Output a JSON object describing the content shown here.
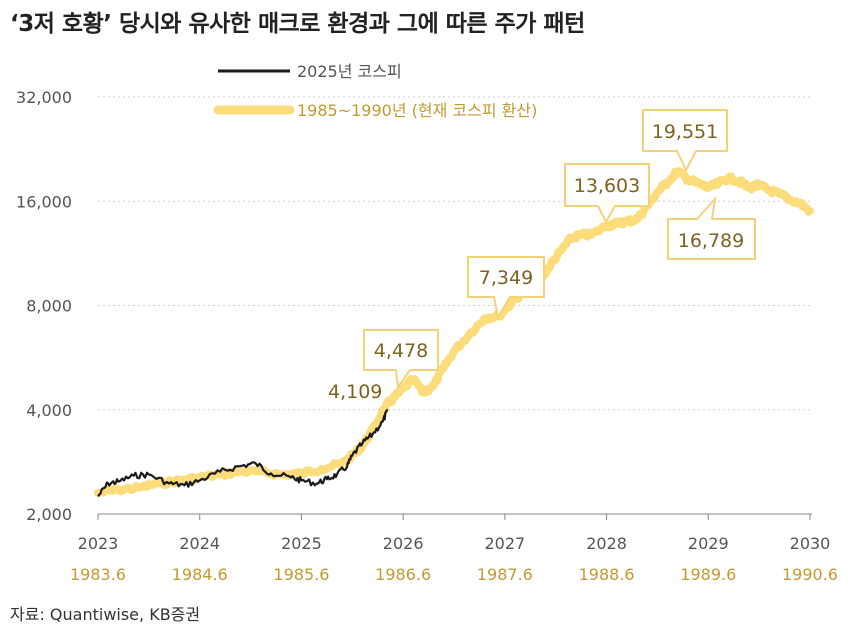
{
  "title": "‘3저 호황’ 당시와 유사한 매크로 환경과 그에 따른 주가 패턴",
  "source": "자료: Quantiwise, KB증권",
  "colors": {
    "series_2025": "#1a1a1a",
    "series_1985": "#fddc7c",
    "annotation_border": "#f5d27a",
    "annotation_text": "#7a6420",
    "secondary_axis": "#c29a2e",
    "grid": "#cfcfcf"
  },
  "chart_data": {
    "type": "line",
    "y_scale": "log",
    "ylim": [
      2000,
      32000
    ],
    "y_ticks": [
      "2,000",
      "4,000",
      "8,000",
      "16,000",
      "32,000"
    ],
    "y_tick_values": [
      2000,
      4000,
      8000,
      16000,
      32000
    ],
    "x_ticks": [
      "2023",
      "2024",
      "2025",
      "2026",
      "2027",
      "2028",
      "2029",
      "2030"
    ],
    "x_ticks_secondary": [
      "1983.6",
      "1984.6",
      "1985.6",
      "1986.6",
      "1987.6",
      "1988.6",
      "1989.6",
      "1990.6"
    ],
    "xlim": [
      2023,
      2030
    ],
    "grid": "horizontal dotted",
    "legend_position": "top-left",
    "series": [
      {
        "name": "2025년 코스피",
        "color": "#1a1a1a",
        "x": [
          2023.0,
          2023.1,
          2023.2,
          2023.35,
          2023.5,
          2023.7,
          2023.85,
          2024.0,
          2024.2,
          2024.4,
          2024.55,
          2024.7,
          2024.9,
          2025.0,
          2025.15,
          2025.25,
          2025.35,
          2025.45,
          2025.5,
          2025.6,
          2025.7,
          2025.8,
          2025.85
        ],
        "y": [
          2250,
          2450,
          2480,
          2580,
          2600,
          2450,
          2420,
          2500,
          2650,
          2750,
          2800,
          2620,
          2550,
          2500,
          2450,
          2520,
          2600,
          2750,
          2950,
          3200,
          3400,
          3700,
          4000
        ]
      },
      {
        "name": "1985~1990년 (현재 코스피 환산)",
        "color": "#fddc7c",
        "x": [
          2023.0,
          2023.2,
          2023.4,
          2023.6,
          2023.8,
          2024.0,
          2024.2,
          2024.4,
          2024.6,
          2024.8,
          2025.0,
          2025.2,
          2025.4,
          2025.5,
          2025.6,
          2025.7,
          2025.83,
          2025.9,
          2026.0,
          2026.1,
          2026.2,
          2026.3,
          2026.4,
          2026.5,
          2026.65,
          2026.8,
          2026.95,
          2027.0,
          2027.15,
          2027.25,
          2027.35,
          2027.45,
          2027.55,
          2027.65,
          2027.75,
          2027.85,
          2028.0,
          2028.1,
          2028.2,
          2028.3,
          2028.4,
          2028.5,
          2028.6,
          2028.7,
          2028.8,
          2028.9,
          2029.0,
          2029.1,
          2029.2,
          2029.3,
          2029.4,
          2029.5,
          2029.6,
          2029.7,
          2029.8,
          2029.9,
          2030.0
        ],
        "y": [
          2300,
          2350,
          2380,
          2450,
          2500,
          2550,
          2600,
          2650,
          2650,
          2600,
          2620,
          2700,
          2800,
          2950,
          3150,
          3500,
          4109,
          4300,
          4600,
          4900,
          4478,
          4700,
          5300,
          5900,
          6600,
          7349,
          7500,
          7800,
          8600,
          9200,
          9500,
          10500,
          11500,
          12500,
          12800,
          12800,
          13603,
          13800,
          14000,
          14200,
          15500,
          17000,
          18200,
          19551,
          18500,
          18000,
          17500,
          18000,
          18700,
          18300,
          17500,
          17800,
          17200,
          16789,
          16200,
          15800,
          15000
        ]
      }
    ],
    "annotations": [
      "4,109",
      "4,478",
      "7,349",
      "13,603",
      "19,551",
      "16,789"
    ]
  }
}
